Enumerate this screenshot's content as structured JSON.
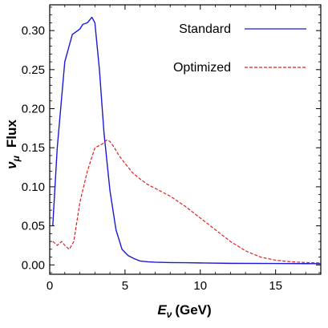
{
  "chart_data": {
    "type": "line",
    "title": "",
    "xlabel": {
      "symbol": "E",
      "subscript": "ν",
      "unit": "(GeV)"
    },
    "ylabel": {
      "symbol": "ν",
      "subscript": "μ",
      "word": "Flux"
    },
    "xlim": [
      0,
      18
    ],
    "ylim": [
      -0.012,
      0.333
    ],
    "xticks": [
      0,
      5,
      10,
      15
    ],
    "xtick_labels": [
      "0",
      "5",
      "10",
      "15"
    ],
    "yticks": [
      0.0,
      0.05,
      0.1,
      0.15,
      0.2,
      0.25,
      0.3
    ],
    "ytick_labels": [
      "0.00",
      "0.05",
      "0.10",
      "0.15",
      "0.20",
      "0.25",
      "0.30"
    ],
    "grid": false,
    "legend": "top-right",
    "series": [
      {
        "name": "Standard",
        "color": "#1a1ad6",
        "dash": "solid",
        "x": [
          0.2,
          0.5,
          1.0,
          1.5,
          2.0,
          2.2,
          2.5,
          2.8,
          3.0,
          3.3,
          3.6,
          4.0,
          4.4,
          4.8,
          5.2,
          5.6,
          6.0,
          6.5,
          7.0,
          8.0,
          9.0,
          10.0,
          12.0,
          15.0,
          18.0
        ],
        "y": [
          0.05,
          0.15,
          0.26,
          0.295,
          0.302,
          0.308,
          0.31,
          0.317,
          0.31,
          0.25,
          0.17,
          0.095,
          0.045,
          0.02,
          0.012,
          0.008,
          0.005,
          0.004,
          0.0035,
          0.003,
          0.0028,
          0.0025,
          0.002,
          0.0018,
          0.0015
        ]
      },
      {
        "name": "Optimized",
        "color": "#e02020",
        "dash": "dashed",
        "x": [
          0.2,
          0.5,
          0.8,
          1.0,
          1.3,
          1.6,
          2.0,
          2.5,
          3.0,
          3.5,
          3.8,
          4.0,
          4.3,
          4.6,
          5.0,
          5.5,
          6.0,
          6.5,
          7.0,
          8.0,
          9.0,
          10.0,
          11.0,
          12.0,
          13.0,
          14.0,
          15.0,
          16.0,
          17.0,
          18.0
        ],
        "y": [
          0.03,
          0.025,
          0.03,
          0.025,
          0.02,
          0.03,
          0.08,
          0.12,
          0.15,
          0.155,
          0.16,
          0.158,
          0.15,
          0.14,
          0.13,
          0.118,
          0.11,
          0.103,
          0.098,
          0.088,
          0.075,
          0.06,
          0.045,
          0.03,
          0.018,
          0.01,
          0.006,
          0.004,
          0.003,
          0.0025
        ]
      }
    ]
  }
}
